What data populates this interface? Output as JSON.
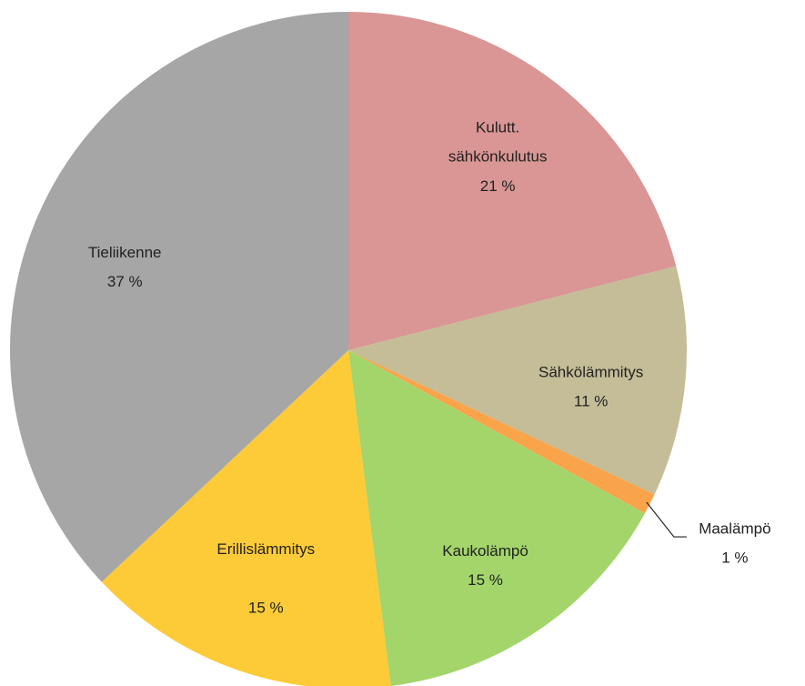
{
  "chart_data": {
    "type": "pie",
    "categories": [
      "Kulutt. sähkönkulutus",
      "Sähkölämmitys",
      "Maalämpö",
      "Kaukolämpö",
      "Erillislämmitys",
      "Tieliikenne"
    ],
    "values": [
      21,
      11,
      1,
      15,
      15,
      37
    ],
    "value_labels": [
      "21 %",
      "11 %",
      "1 %",
      "15 %",
      "15 %",
      "37 %"
    ],
    "colors": [
      "#d99694",
      "#c4bd97",
      "#f9a44a",
      "#a3d56b",
      "#fdcb37",
      "#a6a6a6"
    ]
  }
}
